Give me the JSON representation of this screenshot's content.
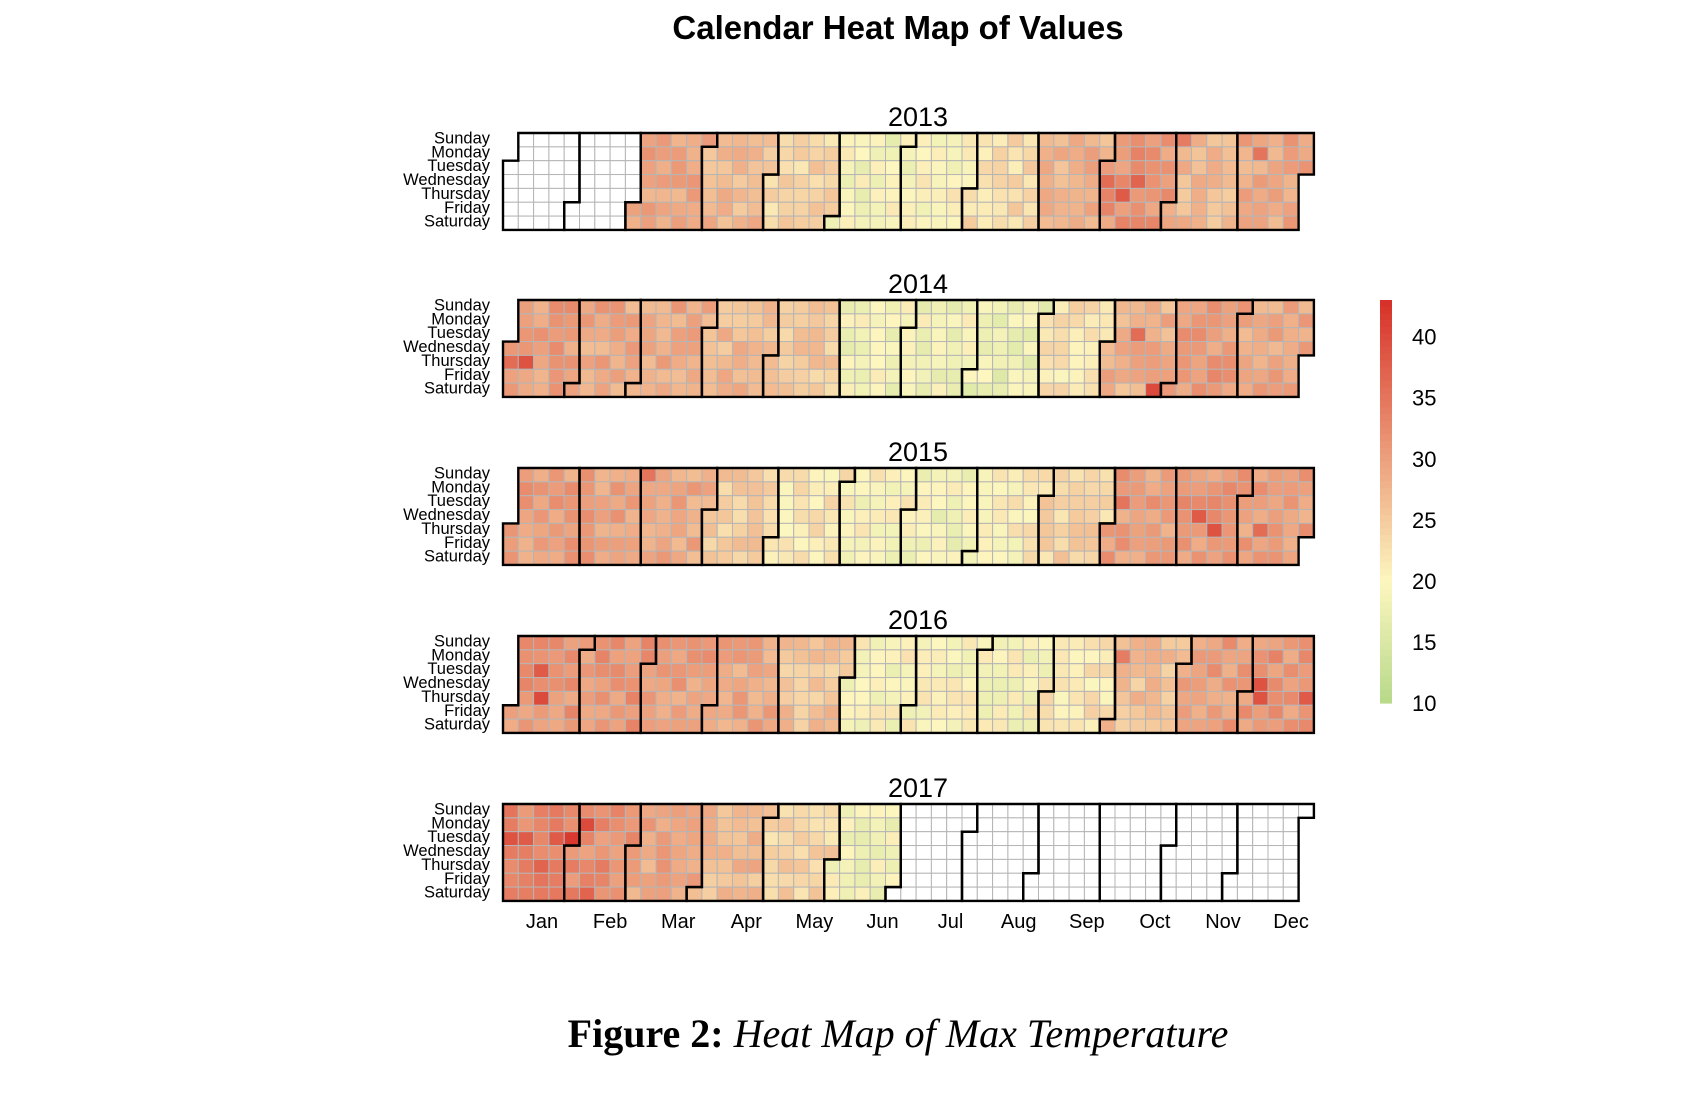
{
  "caption": {
    "label": "Figure 2:",
    "text": "Heat Map of Max Temperature"
  },
  "chart_data": {
    "type": "heatmap",
    "title": "Calendar Heat Map of Values",
    "years": [
      2013,
      2014,
      2015,
      2016,
      2017
    ],
    "weekdays": [
      "Sunday",
      "Monday",
      "Tuesday",
      "Wednesday",
      "Thursday",
      "Friday",
      "Saturday"
    ],
    "months": [
      "Jan",
      "Feb",
      "Mar",
      "Apr",
      "May",
      "Jun",
      "Jul",
      "Aug",
      "Sep",
      "Oct",
      "Nov",
      "Dec"
    ],
    "data_range": {
      "2013": [
        "2013-03-01",
        "2013-12-31"
      ],
      "2014": [
        "2014-01-01",
        "2014-12-31"
      ],
      "2015": [
        "2015-01-01",
        "2015-12-31"
      ],
      "2016": [
        "2016-01-01",
        "2016-12-31"
      ],
      "2017": [
        "2017-01-01",
        "2017-06-30"
      ]
    },
    "colorbar": {
      "min": 10,
      "max": 43,
      "ticks": [
        10,
        15,
        20,
        25,
        30,
        35,
        40
      ]
    },
    "colors": {
      "low": "#b7d98a",
      "mid": "#fdf6bf",
      "high": "#d73027",
      "empty": "#ffffff",
      "grid": "#b5b5b5",
      "border": "#000000"
    },
    "monthly_mean_max_temp": {
      "2013": [
        null,
        null,
        29,
        27,
        24,
        19,
        20,
        23,
        28,
        31,
        27,
        29
      ],
      "2014": [
        30,
        29,
        29,
        27,
        25,
        19,
        19,
        18,
        22,
        28,
        30,
        29
      ],
      "2015": [
        30,
        30,
        29,
        25,
        22,
        20,
        19,
        21,
        24,
        30,
        31,
        30
      ],
      "2016": [
        31,
        31,
        30,
        29,
        26,
        20,
        20,
        20,
        22,
        26,
        30,
        31
      ],
      "2017": [
        33,
        32,
        29,
        27,
        24,
        19,
        null,
        null,
        null,
        null,
        null,
        null
      ]
    },
    "notable_days": {
      "2013": [
        [
          "2013-10-02",
          36
        ],
        [
          "2013-10-10",
          38
        ],
        [
          "2013-10-16",
          37
        ],
        [
          "2013-11-03",
          34
        ],
        [
          "2013-12-09",
          35
        ]
      ],
      "2014": [
        [
          "2014-01-02",
          36
        ],
        [
          "2014-01-09",
          39
        ],
        [
          "2014-10-14",
          36
        ],
        [
          "2014-10-25",
          40
        ],
        [
          "2014-11-21",
          33
        ]
      ],
      "2015": [
        [
          "2015-03-01",
          35
        ],
        [
          "2015-10-06",
          35
        ],
        [
          "2015-11-11",
          38
        ],
        [
          "2015-11-19",
          39
        ],
        [
          "2015-12-10",
          36
        ]
      ],
      "2016": [
        [
          "2016-01-12",
          38
        ],
        [
          "2016-01-14",
          40
        ],
        [
          "2016-10-03",
          34
        ],
        [
          "2016-12-07",
          39
        ],
        [
          "2016-12-08",
          39
        ],
        [
          "2016-12-29",
          38
        ]
      ],
      "2017": [
        [
          "2017-01-03",
          39
        ],
        [
          "2017-01-10",
          38
        ],
        [
          "2017-01-19",
          37
        ],
        [
          "2017-01-24",
          38
        ],
        [
          "2017-01-31",
          42
        ],
        [
          "2017-02-06",
          40
        ],
        [
          "2017-02-11",
          37
        ]
      ]
    }
  }
}
